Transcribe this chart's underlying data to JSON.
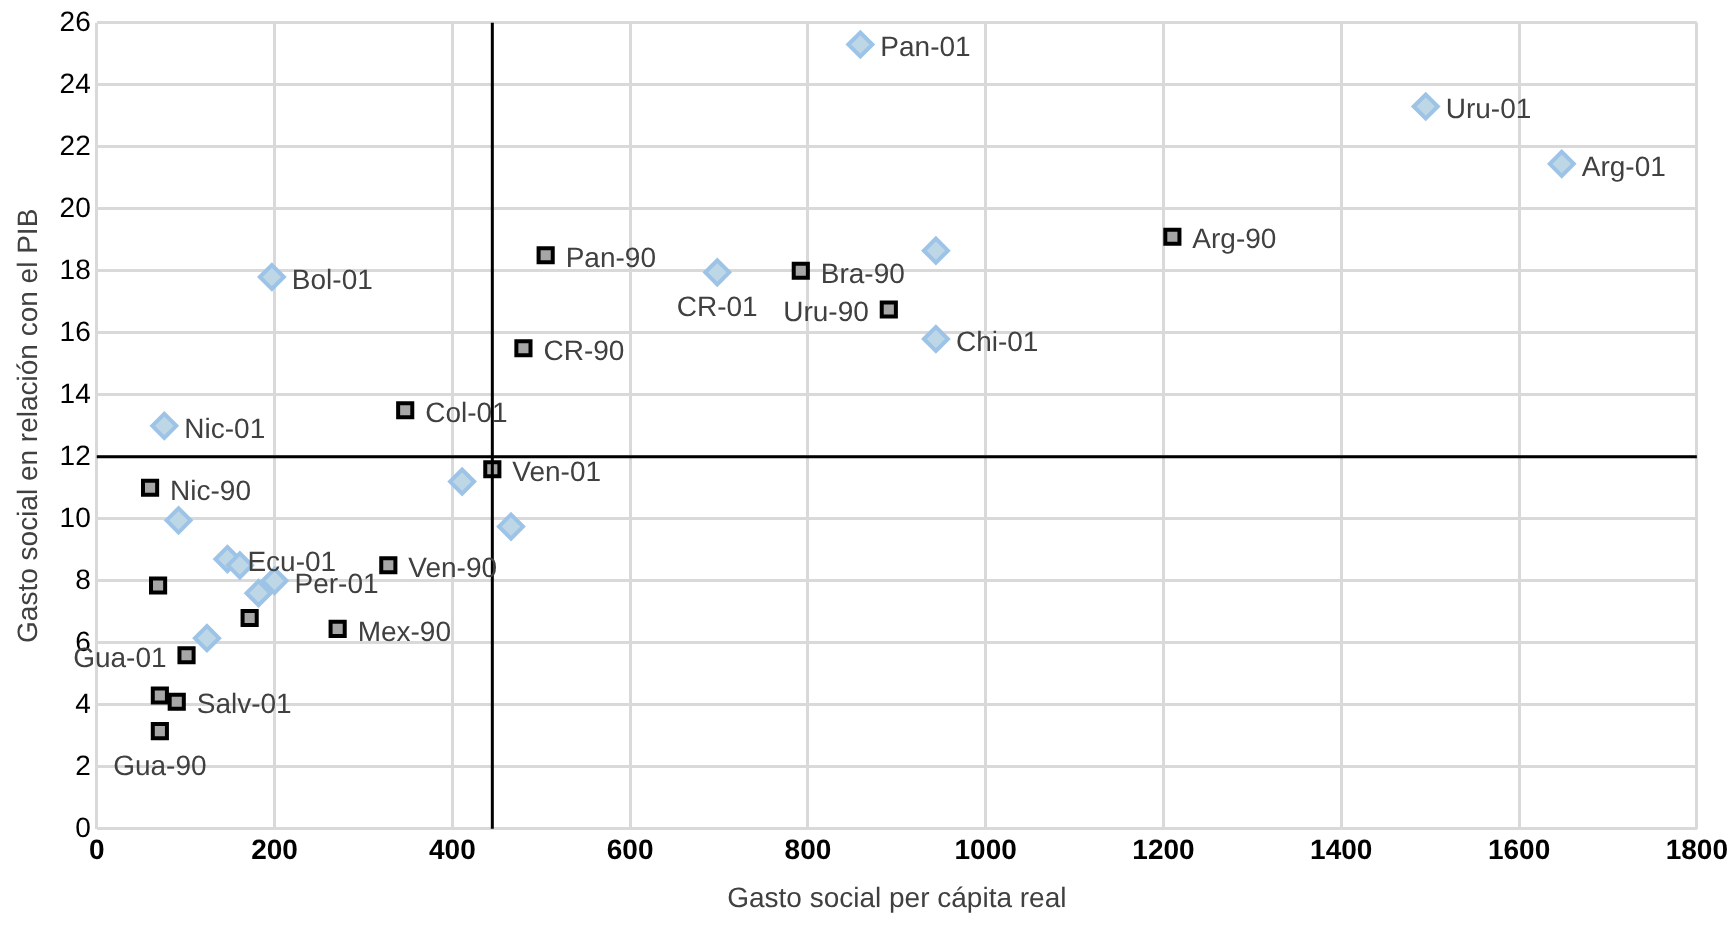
{
  "chart_data": {
    "type": "scatter",
    "xlabel": "Gasto social per cápita real",
    "ylabel": "Gasto social en relación con el PIB",
    "xlim": [
      0,
      1800
    ],
    "xticks": [
      0,
      200,
      400,
      600,
      800,
      1000,
      1200,
      1400,
      1600,
      1800
    ],
    "ylim": [
      0,
      26
    ],
    "yticks": [
      0,
      2,
      4,
      6,
      8,
      10,
      12,
      14,
      16,
      18,
      20,
      22,
      24,
      26
    ],
    "grid": true,
    "legend": false,
    "ref_lines": [
      {
        "axis": "x",
        "value": 445,
        "color": "#000000"
      },
      {
        "axis": "y",
        "value": 12,
        "color": "#000000"
      }
    ],
    "series": [
      {
        "color": "#a6a6a6",
        "marker": "square",
        "x": [
          505,
          480,
          347,
          445,
          60,
          69,
          172,
          271,
          328,
          101,
          71,
          90,
          71,
          792,
          891,
          1210
        ],
        "values": [
          18.5,
          15.5,
          13.5,
          11.6,
          11.0,
          7.85,
          6.8,
          6.45,
          8.5,
          5.6,
          4.3,
          4.1,
          3.15,
          18.0,
          16.75,
          19.1
        ],
        "value_labels": [
          "Pan-90",
          "CR-90",
          "Col-01",
          "Ven-01",
          "Nic-90",
          null,
          null,
          "Mex-90",
          "Ven-90",
          "Gua-01",
          null,
          "Salv-01",
          "Gua-90",
          "Bra-90",
          "Uru-90",
          "Arg-90"
        ]
      },
      {
        "color": "#bdd7e7",
        "marker": "diamond",
        "x": [
          859,
          1495,
          1648,
          944,
          698,
          944,
          197,
          76,
          411,
          466,
          92,
          147,
          161,
          200,
          182,
          124
        ],
        "values": [
          25.3,
          23.3,
          21.45,
          18.65,
          17.95,
          15.8,
          17.8,
          13.0,
          11.2,
          9.75,
          9.95,
          8.7,
          8.5,
          8.0,
          7.6,
          6.15
        ],
        "value_labels": [
          "Pan-01",
          "Uru-01",
          "Arg-01",
          null,
          "CR-01",
          "Chi-01",
          "Bol-01",
          "Nic-01",
          null,
          null,
          null,
          "Ecu-01",
          null,
          "Per-01",
          null,
          null
        ]
      }
    ]
  }
}
